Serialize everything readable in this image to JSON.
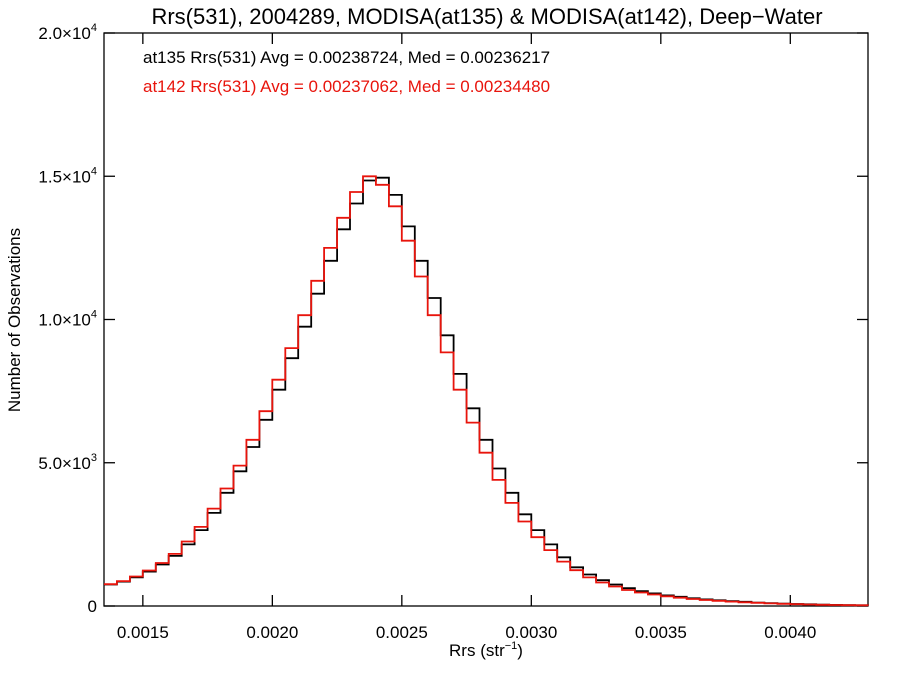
{
  "chart_data": {
    "type": "line",
    "title": "Rrs(531), 2004289, MODISA(at135) & MODISA(at142), Deep−Water",
    "xlabel": "Rrs (str",
    "xlabel_sup": "−1",
    "xlabel_close": ")",
    "ylabel": "Number of Observations",
    "xlim": [
      0.00135,
      0.0043
    ],
    "ylim": [
      0,
      20000
    ],
    "x_ticks": [
      {
        "value": 0.0015,
        "label": "0.0015"
      },
      {
        "value": 0.002,
        "label": "0.0020"
      },
      {
        "value": 0.0025,
        "label": "0.0025"
      },
      {
        "value": 0.003,
        "label": "0.0030"
      },
      {
        "value": 0.0035,
        "label": "0.0035"
      },
      {
        "value": 0.004,
        "label": "0.0040"
      }
    ],
    "y_ticks": [
      {
        "value": 0,
        "mantissa": "0",
        "exponent": ""
      },
      {
        "value": 5000,
        "mantissa": "5.0×10",
        "exponent": "3"
      },
      {
        "value": 10000,
        "mantissa": "1.0×10",
        "exponent": "4"
      },
      {
        "value": 15000,
        "mantissa": "1.5×10",
        "exponent": "4"
      },
      {
        "value": 20000,
        "mantissa": "2.0×10",
        "exponent": "4"
      }
    ],
    "annotations": [
      {
        "text": "at135 Rrs(531) Avg = 0.00238724, Med = 0.00236217",
        "color": "#000000"
      },
      {
        "text": "at142 Rrs(531) Avg = 0.00237062, Med = 0.00234480",
        "color": "#e8140c"
      }
    ],
    "series": [
      {
        "color": "#000000",
        "x": [
          0.00135,
          0.0014,
          0.00145,
          0.0015,
          0.00155,
          0.0016,
          0.00165,
          0.0017,
          0.00175,
          0.0018,
          0.00185,
          0.0019,
          0.00195,
          0.002,
          0.00205,
          0.0021,
          0.00215,
          0.0022,
          0.00225,
          0.0023,
          0.00235,
          0.0024,
          0.00245,
          0.0025,
          0.00255,
          0.0026,
          0.00265,
          0.0027,
          0.00275,
          0.0028,
          0.00285,
          0.0029,
          0.00295,
          0.003,
          0.00305,
          0.0031,
          0.00315,
          0.0032,
          0.00325,
          0.0033,
          0.00335,
          0.0034,
          0.00345,
          0.0035,
          0.00355,
          0.0036,
          0.00365,
          0.0037,
          0.00375,
          0.0038,
          0.00385,
          0.0039,
          0.00395,
          0.004,
          0.00405,
          0.0041,
          0.00415,
          0.0042,
          0.00425,
          0.0043
        ],
        "values": [
          750,
          850,
          1000,
          1200,
          1450,
          1750,
          2150,
          2650,
          3250,
          3950,
          4700,
          5550,
          6500,
          7550,
          8650,
          9750,
          10900,
          12050,
          13150,
          14050,
          14850,
          14950,
          14350,
          13250,
          12050,
          10750,
          9450,
          8100,
          6900,
          5800,
          4800,
          3950,
          3200,
          2650,
          2150,
          1700,
          1350,
          1100,
          900,
          750,
          620,
          520,
          440,
          370,
          320,
          270,
          230,
          200,
          170,
          145,
          120,
          100,
          85,
          70,
          58,
          48,
          40,
          32,
          26,
          20
        ]
      },
      {
        "color": "#e8140c",
        "x": [
          0.00135,
          0.0014,
          0.00145,
          0.0015,
          0.00155,
          0.0016,
          0.00165,
          0.0017,
          0.00175,
          0.0018,
          0.00185,
          0.0019,
          0.00195,
          0.002,
          0.00205,
          0.0021,
          0.00215,
          0.0022,
          0.00225,
          0.0023,
          0.00235,
          0.0024,
          0.00245,
          0.0025,
          0.00255,
          0.0026,
          0.00265,
          0.0027,
          0.00275,
          0.0028,
          0.00285,
          0.0029,
          0.00295,
          0.003,
          0.00305,
          0.0031,
          0.00315,
          0.0032,
          0.00325,
          0.0033,
          0.00335,
          0.0034,
          0.00345,
          0.0035,
          0.00355,
          0.0036,
          0.00365,
          0.0037,
          0.00375,
          0.0038,
          0.00385,
          0.0039,
          0.00395,
          0.004,
          0.00405,
          0.0041,
          0.00415,
          0.0042,
          0.00425,
          0.0043
        ],
        "values": [
          760,
          870,
          1030,
          1240,
          1500,
          1820,
          2250,
          2760,
          3400,
          4100,
          4900,
          5800,
          6800,
          7900,
          9000,
          10150,
          11350,
          12500,
          13550,
          14450,
          15000,
          14700,
          13950,
          12750,
          11500,
          10150,
          8850,
          7550,
          6400,
          5350,
          4400,
          3600,
          2950,
          2400,
          1950,
          1550,
          1250,
          1000,
          820,
          680,
          560,
          470,
          400,
          340,
          290,
          245,
          210,
          180,
          155,
          130,
          110,
          92,
          76,
          63,
          52,
          43,
          35,
          28,
          23,
          18
        ]
      }
    ]
  }
}
